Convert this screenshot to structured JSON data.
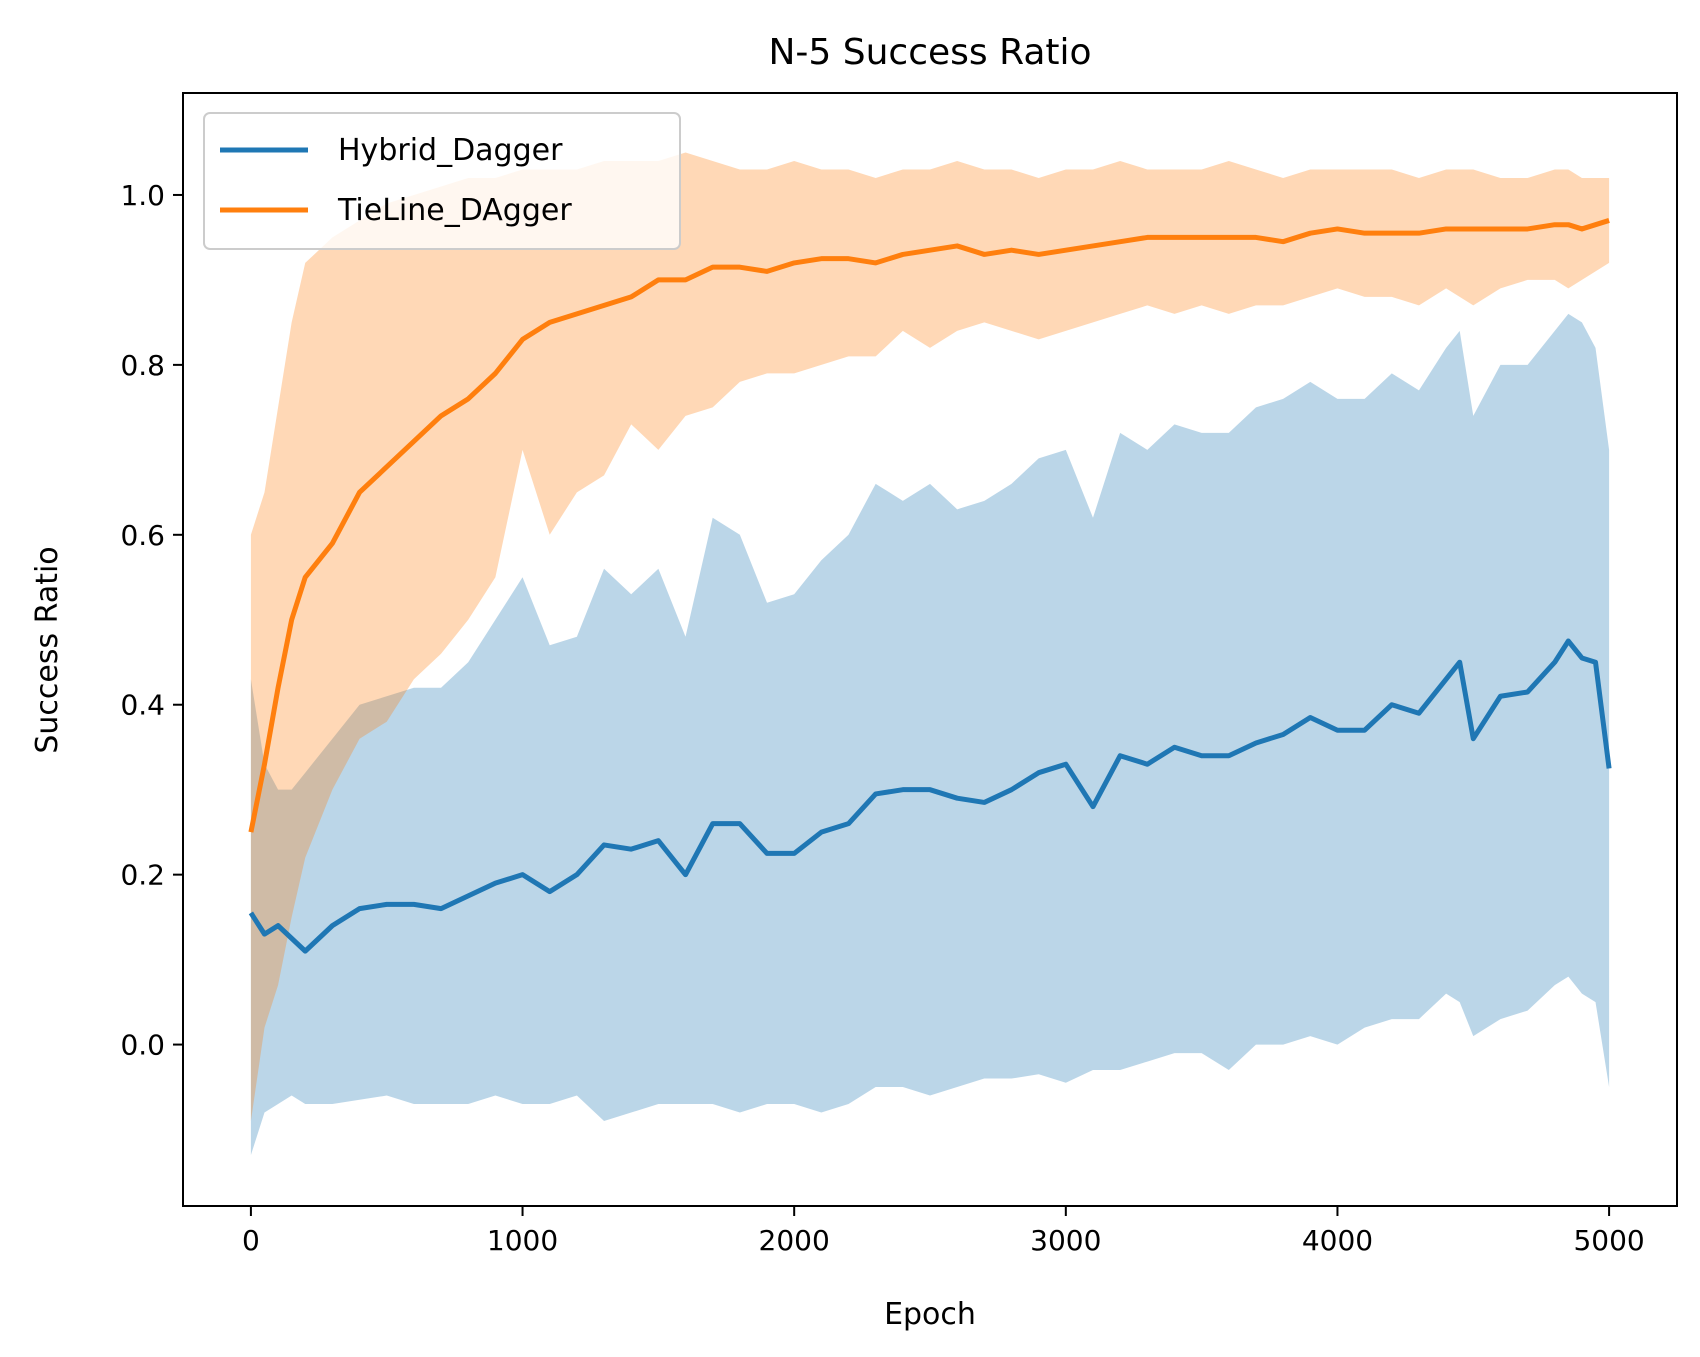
{
  "chart_data": {
    "type": "line",
    "title": "N-5 Success Ratio",
    "xlabel": "Epoch",
    "ylabel": "Success Ratio",
    "xlim": [
      -250,
      5250
    ],
    "ylim": [
      -0.19,
      1.12
    ],
    "xticks": [
      0,
      1000,
      2000,
      3000,
      4000,
      5000
    ],
    "xtick_labels": [
      "0",
      "1000",
      "2000",
      "3000",
      "4000",
      "5000"
    ],
    "yticks": [
      0.0,
      0.2,
      0.4,
      0.6,
      0.8,
      1.0
    ],
    "ytick_labels": [
      "0.0",
      "0.2",
      "0.4",
      "0.6",
      "0.8",
      "1.0"
    ],
    "grid": false,
    "legend_position": "top-left",
    "x": [
      0,
      50,
      100,
      150,
      200,
      300,
      400,
      500,
      600,
      700,
      800,
      900,
      1000,
      1100,
      1200,
      1300,
      1400,
      1500,
      1600,
      1700,
      1800,
      1900,
      2000,
      2100,
      2200,
      2300,
      2400,
      2500,
      2600,
      2700,
      2800,
      2900,
      3000,
      3100,
      3200,
      3300,
      3400,
      3500,
      3600,
      3700,
      3800,
      3900,
      4000,
      4100,
      4200,
      4300,
      4400,
      4450,
      4500,
      4600,
      4700,
      4800,
      4850,
      4900,
      4950,
      5000
    ],
    "series": [
      {
        "name": "Hybrid_Dagger",
        "color": "#1f77b4",
        "band_opacity": 0.3,
        "values": [
          0.155,
          0.13,
          0.14,
          0.125,
          0.11,
          0.14,
          0.16,
          0.165,
          0.165,
          0.16,
          0.175,
          0.19,
          0.2,
          0.18,
          0.2,
          0.235,
          0.23,
          0.24,
          0.2,
          0.26,
          0.26,
          0.225,
          0.225,
          0.25,
          0.26,
          0.295,
          0.3,
          0.3,
          0.29,
          0.285,
          0.3,
          0.32,
          0.33,
          0.28,
          0.34,
          0.33,
          0.35,
          0.34,
          0.34,
          0.355,
          0.365,
          0.385,
          0.37,
          0.37,
          0.4,
          0.39,
          0.43,
          0.45,
          0.36,
          0.41,
          0.415,
          0.45,
          0.475,
          0.455,
          0.45,
          0.325
        ],
        "lower": [
          -0.13,
          -0.08,
          -0.07,
          -0.06,
          -0.07,
          -0.07,
          -0.065,
          -0.06,
          -0.07,
          -0.07,
          -0.07,
          -0.06,
          -0.07,
          -0.07,
          -0.06,
          -0.09,
          -0.08,
          -0.07,
          -0.07,
          -0.07,
          -0.08,
          -0.07,
          -0.07,
          -0.08,
          -0.07,
          -0.05,
          -0.05,
          -0.06,
          -0.05,
          -0.04,
          -0.04,
          -0.035,
          -0.045,
          -0.03,
          -0.03,
          -0.02,
          -0.01,
          -0.01,
          -0.03,
          0.0,
          0.0,
          0.01,
          0.0,
          0.02,
          0.03,
          0.03,
          0.06,
          0.05,
          0.01,
          0.03,
          0.04,
          0.07,
          0.08,
          0.06,
          0.05,
          -0.05
        ],
        "upper": [
          0.43,
          0.33,
          0.3,
          0.3,
          0.32,
          0.36,
          0.4,
          0.41,
          0.42,
          0.42,
          0.45,
          0.5,
          0.55,
          0.47,
          0.48,
          0.56,
          0.53,
          0.56,
          0.48,
          0.62,
          0.6,
          0.52,
          0.53,
          0.57,
          0.6,
          0.66,
          0.64,
          0.66,
          0.63,
          0.64,
          0.66,
          0.69,
          0.7,
          0.62,
          0.72,
          0.7,
          0.73,
          0.72,
          0.72,
          0.75,
          0.76,
          0.78,
          0.76,
          0.76,
          0.79,
          0.77,
          0.82,
          0.84,
          0.74,
          0.8,
          0.8,
          0.84,
          0.86,
          0.85,
          0.82,
          0.7
        ]
      },
      {
        "name": "TieLine_DAgger",
        "color": "#ff7f0e",
        "band_opacity": 0.3,
        "values": [
          0.25,
          0.33,
          0.42,
          0.5,
          0.55,
          0.59,
          0.65,
          0.68,
          0.71,
          0.74,
          0.76,
          0.79,
          0.83,
          0.85,
          0.86,
          0.87,
          0.88,
          0.9,
          0.9,
          0.915,
          0.915,
          0.91,
          0.92,
          0.925,
          0.925,
          0.92,
          0.93,
          0.935,
          0.94,
          0.93,
          0.935,
          0.93,
          0.935,
          0.94,
          0.945,
          0.95,
          0.95,
          0.95,
          0.95,
          0.95,
          0.945,
          0.955,
          0.96,
          0.955,
          0.955,
          0.955,
          0.96,
          0.96,
          0.96,
          0.96,
          0.96,
          0.965,
          0.965,
          0.96,
          0.965,
          0.97
        ],
        "lower": [
          -0.09,
          0.02,
          0.07,
          0.15,
          0.22,
          0.3,
          0.36,
          0.38,
          0.43,
          0.46,
          0.5,
          0.55,
          0.7,
          0.6,
          0.65,
          0.67,
          0.73,
          0.7,
          0.74,
          0.75,
          0.78,
          0.79,
          0.79,
          0.8,
          0.81,
          0.81,
          0.84,
          0.82,
          0.84,
          0.85,
          0.84,
          0.83,
          0.84,
          0.85,
          0.86,
          0.87,
          0.86,
          0.87,
          0.86,
          0.87,
          0.87,
          0.88,
          0.89,
          0.88,
          0.88,
          0.87,
          0.89,
          0.88,
          0.87,
          0.89,
          0.9,
          0.9,
          0.89,
          0.9,
          0.91,
          0.92
        ],
        "upper": [
          0.6,
          0.65,
          0.75,
          0.85,
          0.92,
          0.95,
          0.97,
          0.99,
          1.0,
          1.01,
          1.02,
          1.02,
          1.03,
          1.03,
          1.03,
          1.04,
          1.04,
          1.04,
          1.05,
          1.04,
          1.03,
          1.03,
          1.04,
          1.03,
          1.03,
          1.02,
          1.03,
          1.03,
          1.04,
          1.03,
          1.03,
          1.02,
          1.03,
          1.03,
          1.04,
          1.03,
          1.03,
          1.03,
          1.04,
          1.03,
          1.02,
          1.03,
          1.03,
          1.03,
          1.03,
          1.02,
          1.03,
          1.03,
          1.03,
          1.02,
          1.02,
          1.03,
          1.03,
          1.02,
          1.02,
          1.02
        ]
      }
    ]
  }
}
